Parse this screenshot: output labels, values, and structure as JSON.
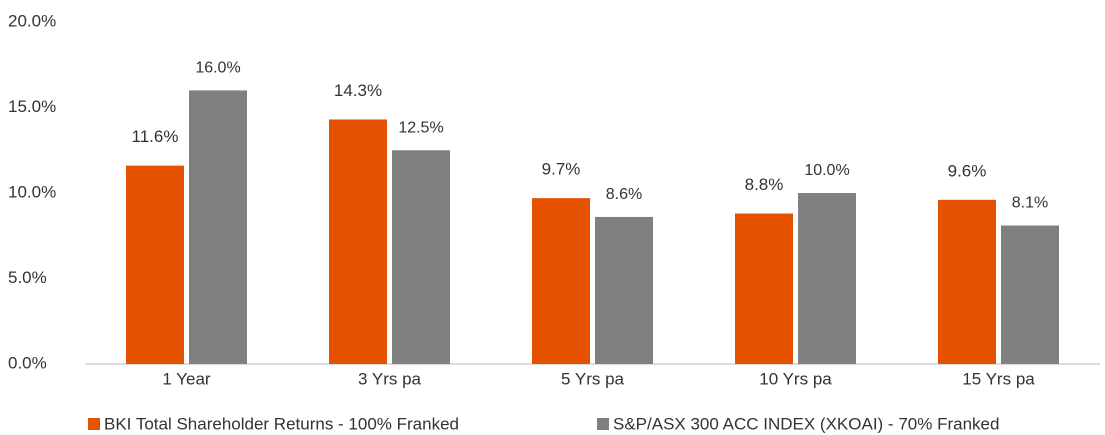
{
  "chart_data": {
    "type": "bar",
    "categories": [
      "1 Year",
      "3 Yrs pa",
      "5 Yrs pa",
      "10 Yrs pa",
      "15 Yrs pa"
    ],
    "series": [
      {
        "name": "BKI Total Shareholder Returns - 100% Franked",
        "color": "#e65100",
        "values": [
          11.6,
          14.3,
          9.7,
          8.8,
          9.6
        ],
        "value_labels": [
          "11.6%",
          "14.3%",
          "9.7%",
          "8.8%",
          "9.6%"
        ]
      },
      {
        "name": "S&P/ASX 300 ACC INDEX (XKOAI) - 70% Franked",
        "color": "#808080",
        "values": [
          16.0,
          12.5,
          8.6,
          10.0,
          8.1
        ],
        "value_labels": [
          "16.0%",
          "12.5%",
          "8.6%",
          "10.0%",
          "8.1%"
        ]
      }
    ],
    "ylim": [
      0,
      20
    ],
    "yticks": [
      {
        "value": 0,
        "label": "0.0%"
      },
      {
        "value": 5,
        "label": "5.0%"
      },
      {
        "value": 10,
        "label": "10.0%"
      },
      {
        "value": 15,
        "label": "15.0%"
      },
      {
        "value": 20,
        "label": "20.0%"
      }
    ],
    "grid": false,
    "legend": "bottom"
  }
}
